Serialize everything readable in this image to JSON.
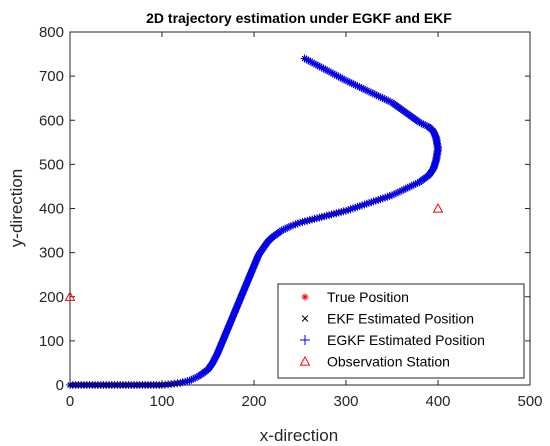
{
  "chart_data": {
    "type": "line",
    "title": "2D trajectory estimation under EGKF and EKF",
    "xlabel": "x-direction",
    "ylabel": "y-direction",
    "xlim": [
      0,
      500
    ],
    "ylim": [
      0,
      800
    ],
    "xticks": [
      0,
      100,
      200,
      300,
      400,
      500
    ],
    "yticks": [
      0,
      100,
      200,
      300,
      400,
      500,
      600,
      700,
      800
    ],
    "grid": false,
    "legend_location": "bottom-right",
    "trajectory_waypoints": {
      "x": [
        0,
        100,
        110,
        120,
        130,
        140,
        150,
        155,
        160,
        170,
        180,
        190,
        200,
        205,
        210,
        215,
        220,
        230,
        240,
        250,
        300,
        350,
        380,
        390,
        395,
        398,
        400,
        398,
        395,
        390,
        380,
        350,
        300,
        255
      ],
      "y": [
        0,
        0,
        2,
        5,
        10,
        20,
        35,
        50,
        70,
        120,
        170,
        220,
        270,
        295,
        310,
        325,
        335,
        350,
        360,
        368,
        395,
        430,
        460,
        475,
        490,
        510,
        535,
        560,
        575,
        585,
        595,
        640,
        690,
        740
      ]
    },
    "series": [
      {
        "name": "True Position",
        "marker": "*",
        "color": "#ff0000"
      },
      {
        "name": "EKF Estimated Position",
        "marker": "x",
        "color": "#000000"
      },
      {
        "name": "EGKF Estimated Position",
        "marker": "+",
        "color": "#0000ff"
      },
      {
        "name": "Observation Station",
        "marker": "triangle",
        "color": "#ff0000",
        "x": [
          0,
          400
        ],
        "y": [
          200,
          400
        ]
      }
    ]
  }
}
